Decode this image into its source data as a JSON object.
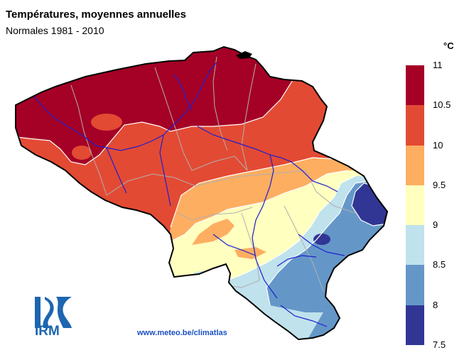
{
  "title": "Températures, moyennes annuelles",
  "subtitle": "Normales 1981 - 2010",
  "legend": {
    "unit": "°C",
    "classes": [
      {
        "range": "10.5 - 11",
        "color": "#a50026"
      },
      {
        "range": "10 - 10.5",
        "color": "#e34a33"
      },
      {
        "range": "9.5 - 10",
        "color": "#fdae61"
      },
      {
        "range": "9 - 9.5",
        "color": "#ffffbf"
      },
      {
        "range": "8.5 - 9",
        "color": "#bfe2ec"
      },
      {
        "range": "8 - 8.5",
        "color": "#6497c8"
      },
      {
        "range": "7.5 - 8",
        "color": "#313695"
      }
    ],
    "tick_labels": [
      "11",
      "10.5",
      "10",
      "9.5",
      "9",
      "8.5",
      "8",
      "7.5"
    ]
  },
  "logo": {
    "text": "IRM",
    "icon": "irm-logo-icon"
  },
  "footer_url": "www.meteo.be/climatlas"
}
